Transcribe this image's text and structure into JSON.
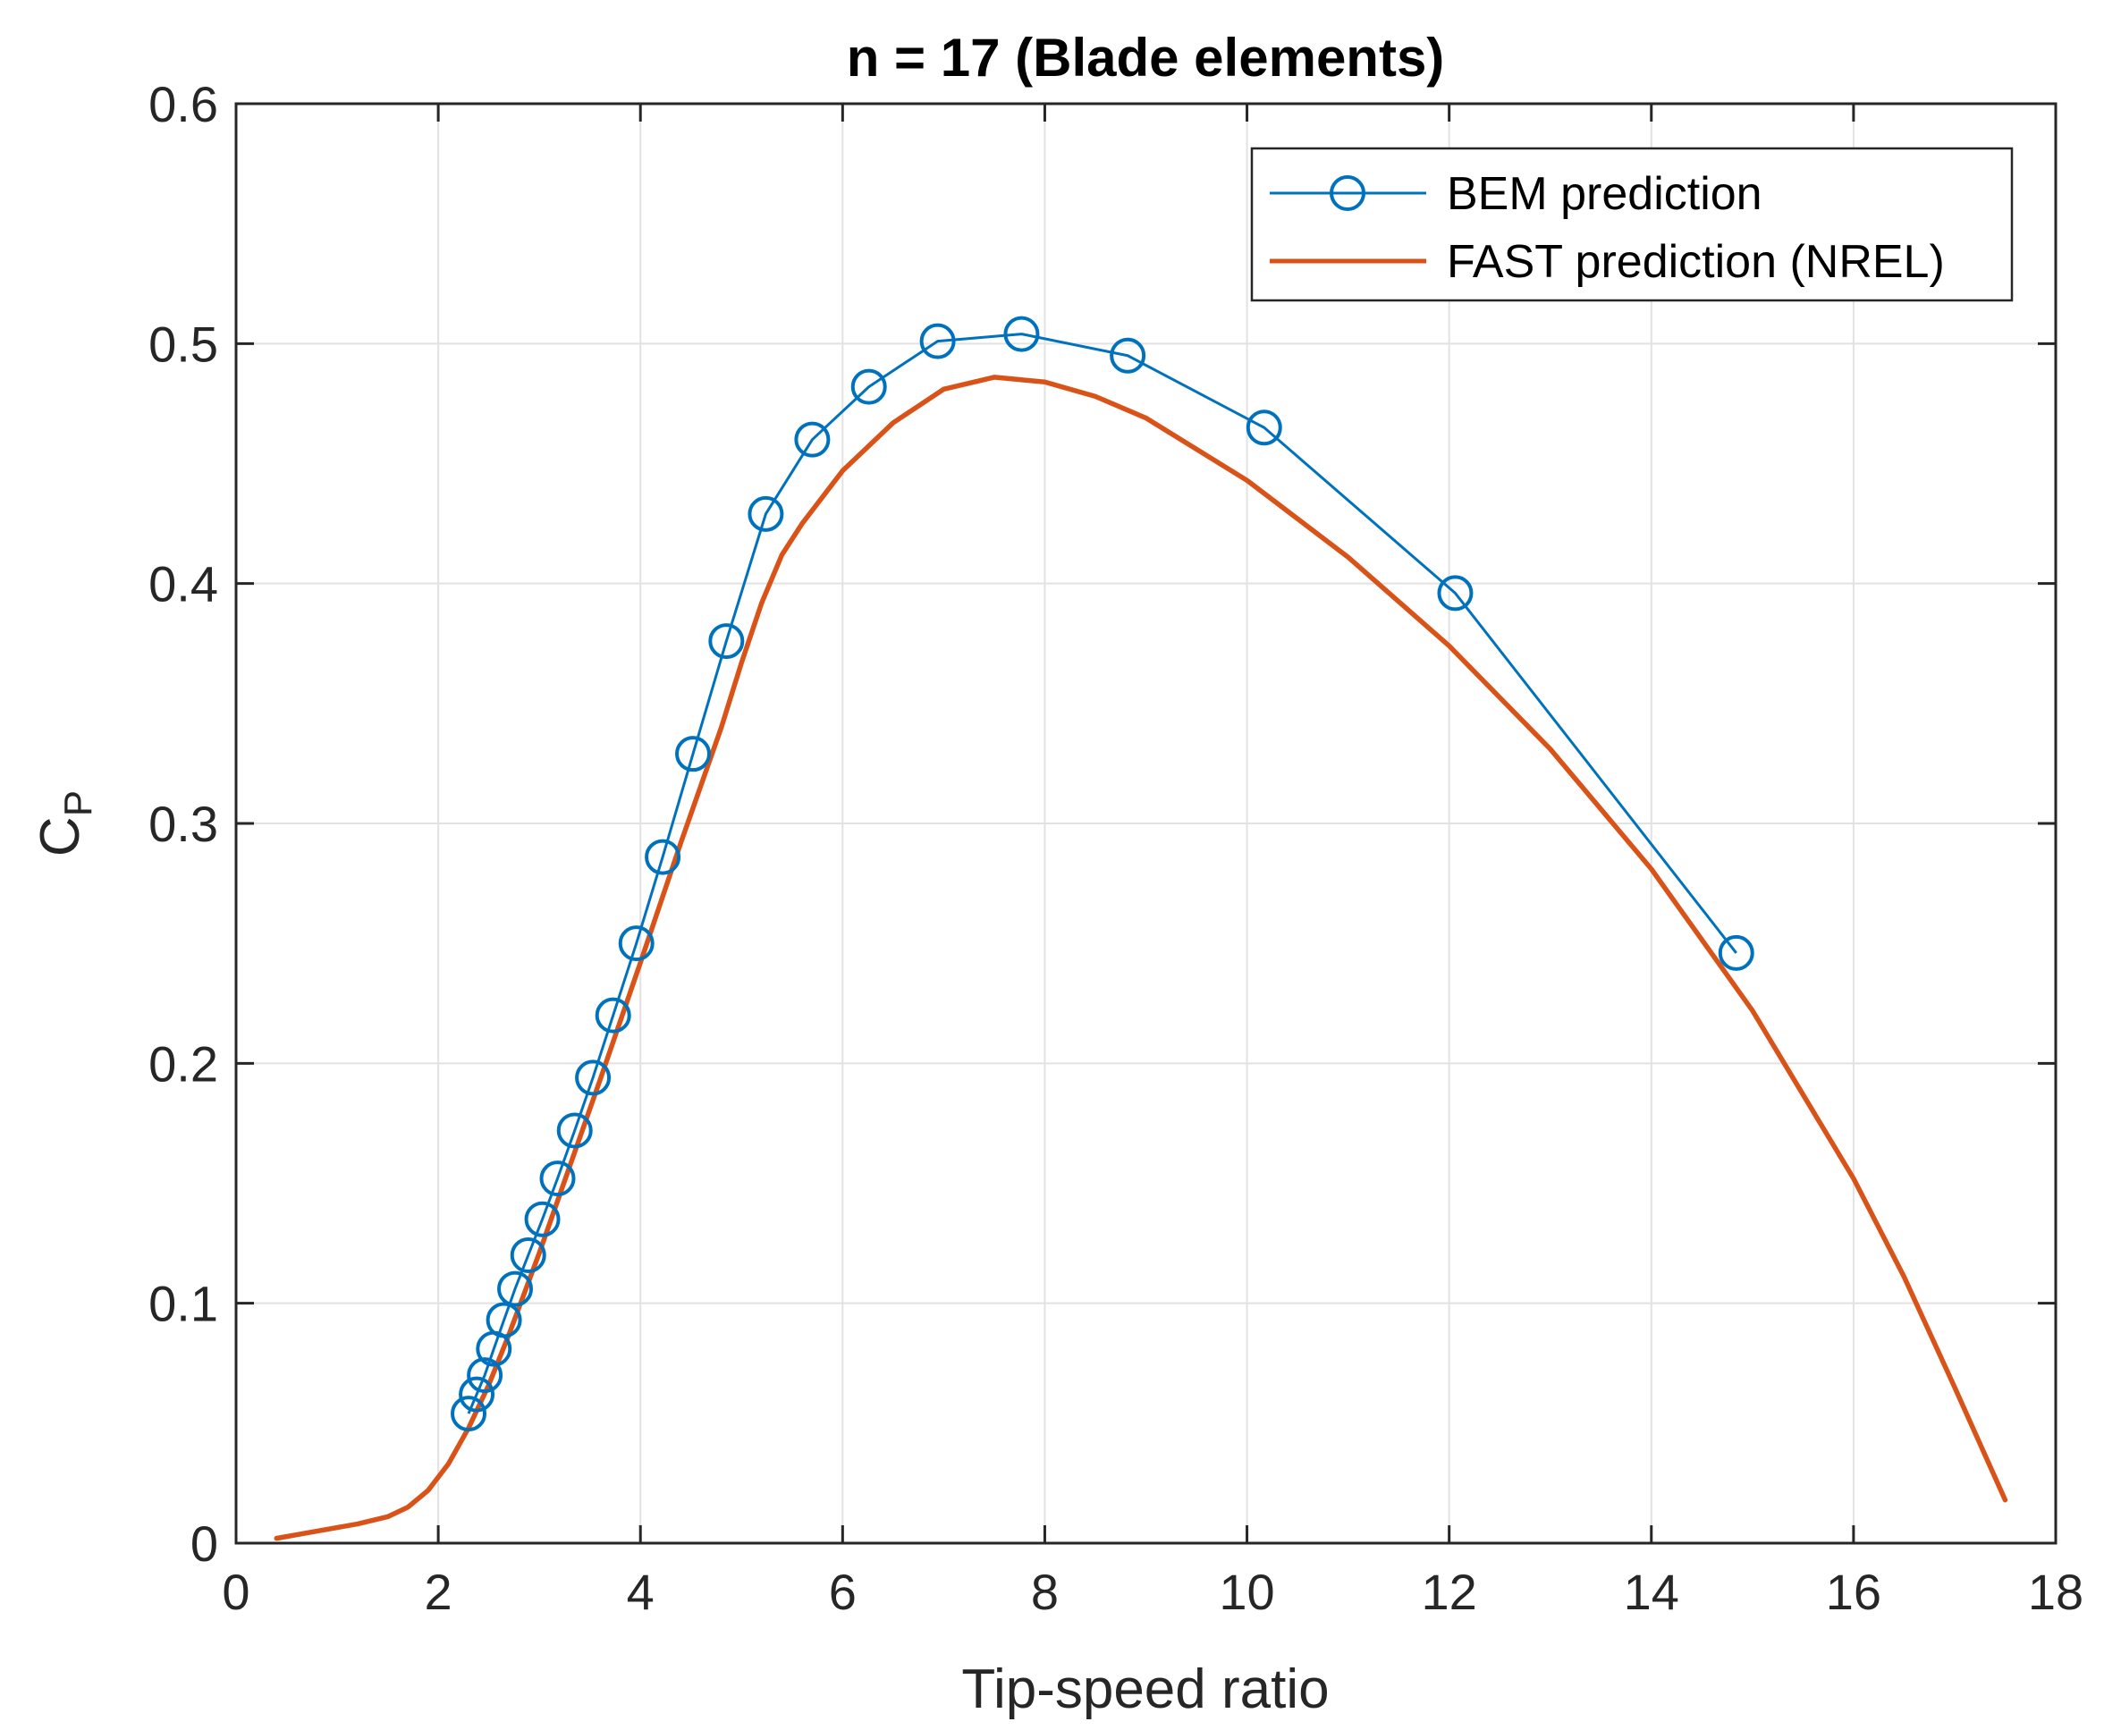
{
  "chart_data": {
    "type": "line",
    "title": "n = 17 (Blade elements)",
    "xlabel": "Tip-speed ratio",
    "ylabel": {
      "main": "C",
      "sub": "P"
    },
    "xlim": [
      0,
      18
    ],
    "ylim": [
      0,
      0.6
    ],
    "xticks": [
      0,
      2,
      4,
      6,
      8,
      10,
      12,
      14,
      16,
      18
    ],
    "xtick_labels": [
      "0",
      "2",
      "4",
      "6",
      "8",
      "10",
      "12",
      "14",
      "16",
      "18"
    ],
    "yticks": [
      0,
      0.1,
      0.2,
      0.3,
      0.4,
      0.5,
      0.6
    ],
    "ytick_labels": [
      "0",
      "0.1",
      "0.2",
      "0.3",
      "0.4",
      "0.5",
      "0.6"
    ],
    "grid": true,
    "legend_position": "top-right",
    "series": [
      {
        "name": "BEM prediction",
        "color": "#0072BD",
        "marker": "circle",
        "x": [
          2.3,
          2.38,
          2.46,
          2.55,
          2.65,
          2.76,
          2.89,
          3.03,
          3.18,
          3.35,
          3.53,
          3.73,
          3.96,
          4.22,
          4.52,
          4.85,
          5.24,
          5.7,
          6.26,
          6.94,
          7.77,
          8.82,
          10.17,
          12.06,
          14.84
        ],
        "y": [
          0.054,
          0.062,
          0.07,
          0.081,
          0.093,
          0.106,
          0.12,
          0.135,
          0.152,
          0.172,
          0.194,
          0.22,
          0.25,
          0.286,
          0.329,
          0.376,
          0.429,
          0.46,
          0.482,
          0.501,
          0.504,
          0.495,
          0.465,
          0.396,
          0.246
        ]
      },
      {
        "name": "FAST prediction (NREL)",
        "color": "#D95319",
        "marker": "none",
        "x": [
          0.4,
          0.8,
          1.2,
          1.5,
          1.7,
          1.9,
          2.1,
          2.3,
          2.5,
          2.7,
          3.0,
          3.3,
          3.6,
          4.0,
          4.4,
          4.8,
          5.0,
          5.2,
          5.4,
          5.6,
          6.0,
          6.5,
          7.0,
          7.5,
          8.0,
          8.5,
          9.0,
          10.0,
          11.0,
          12.0,
          13.0,
          14.0,
          15.0,
          16.0,
          16.5,
          17.0,
          17.5
        ],
        "y": [
          0.002,
          0.005,
          0.008,
          0.011,
          0.015,
          0.022,
          0.033,
          0.048,
          0.066,
          0.087,
          0.121,
          0.157,
          0.193,
          0.242,
          0.292,
          0.34,
          0.367,
          0.392,
          0.412,
          0.425,
          0.447,
          0.467,
          0.481,
          0.486,
          0.484,
          0.478,
          0.469,
          0.443,
          0.411,
          0.374,
          0.331,
          0.281,
          0.222,
          0.152,
          0.111,
          0.065,
          0.018
        ]
      }
    ]
  }
}
